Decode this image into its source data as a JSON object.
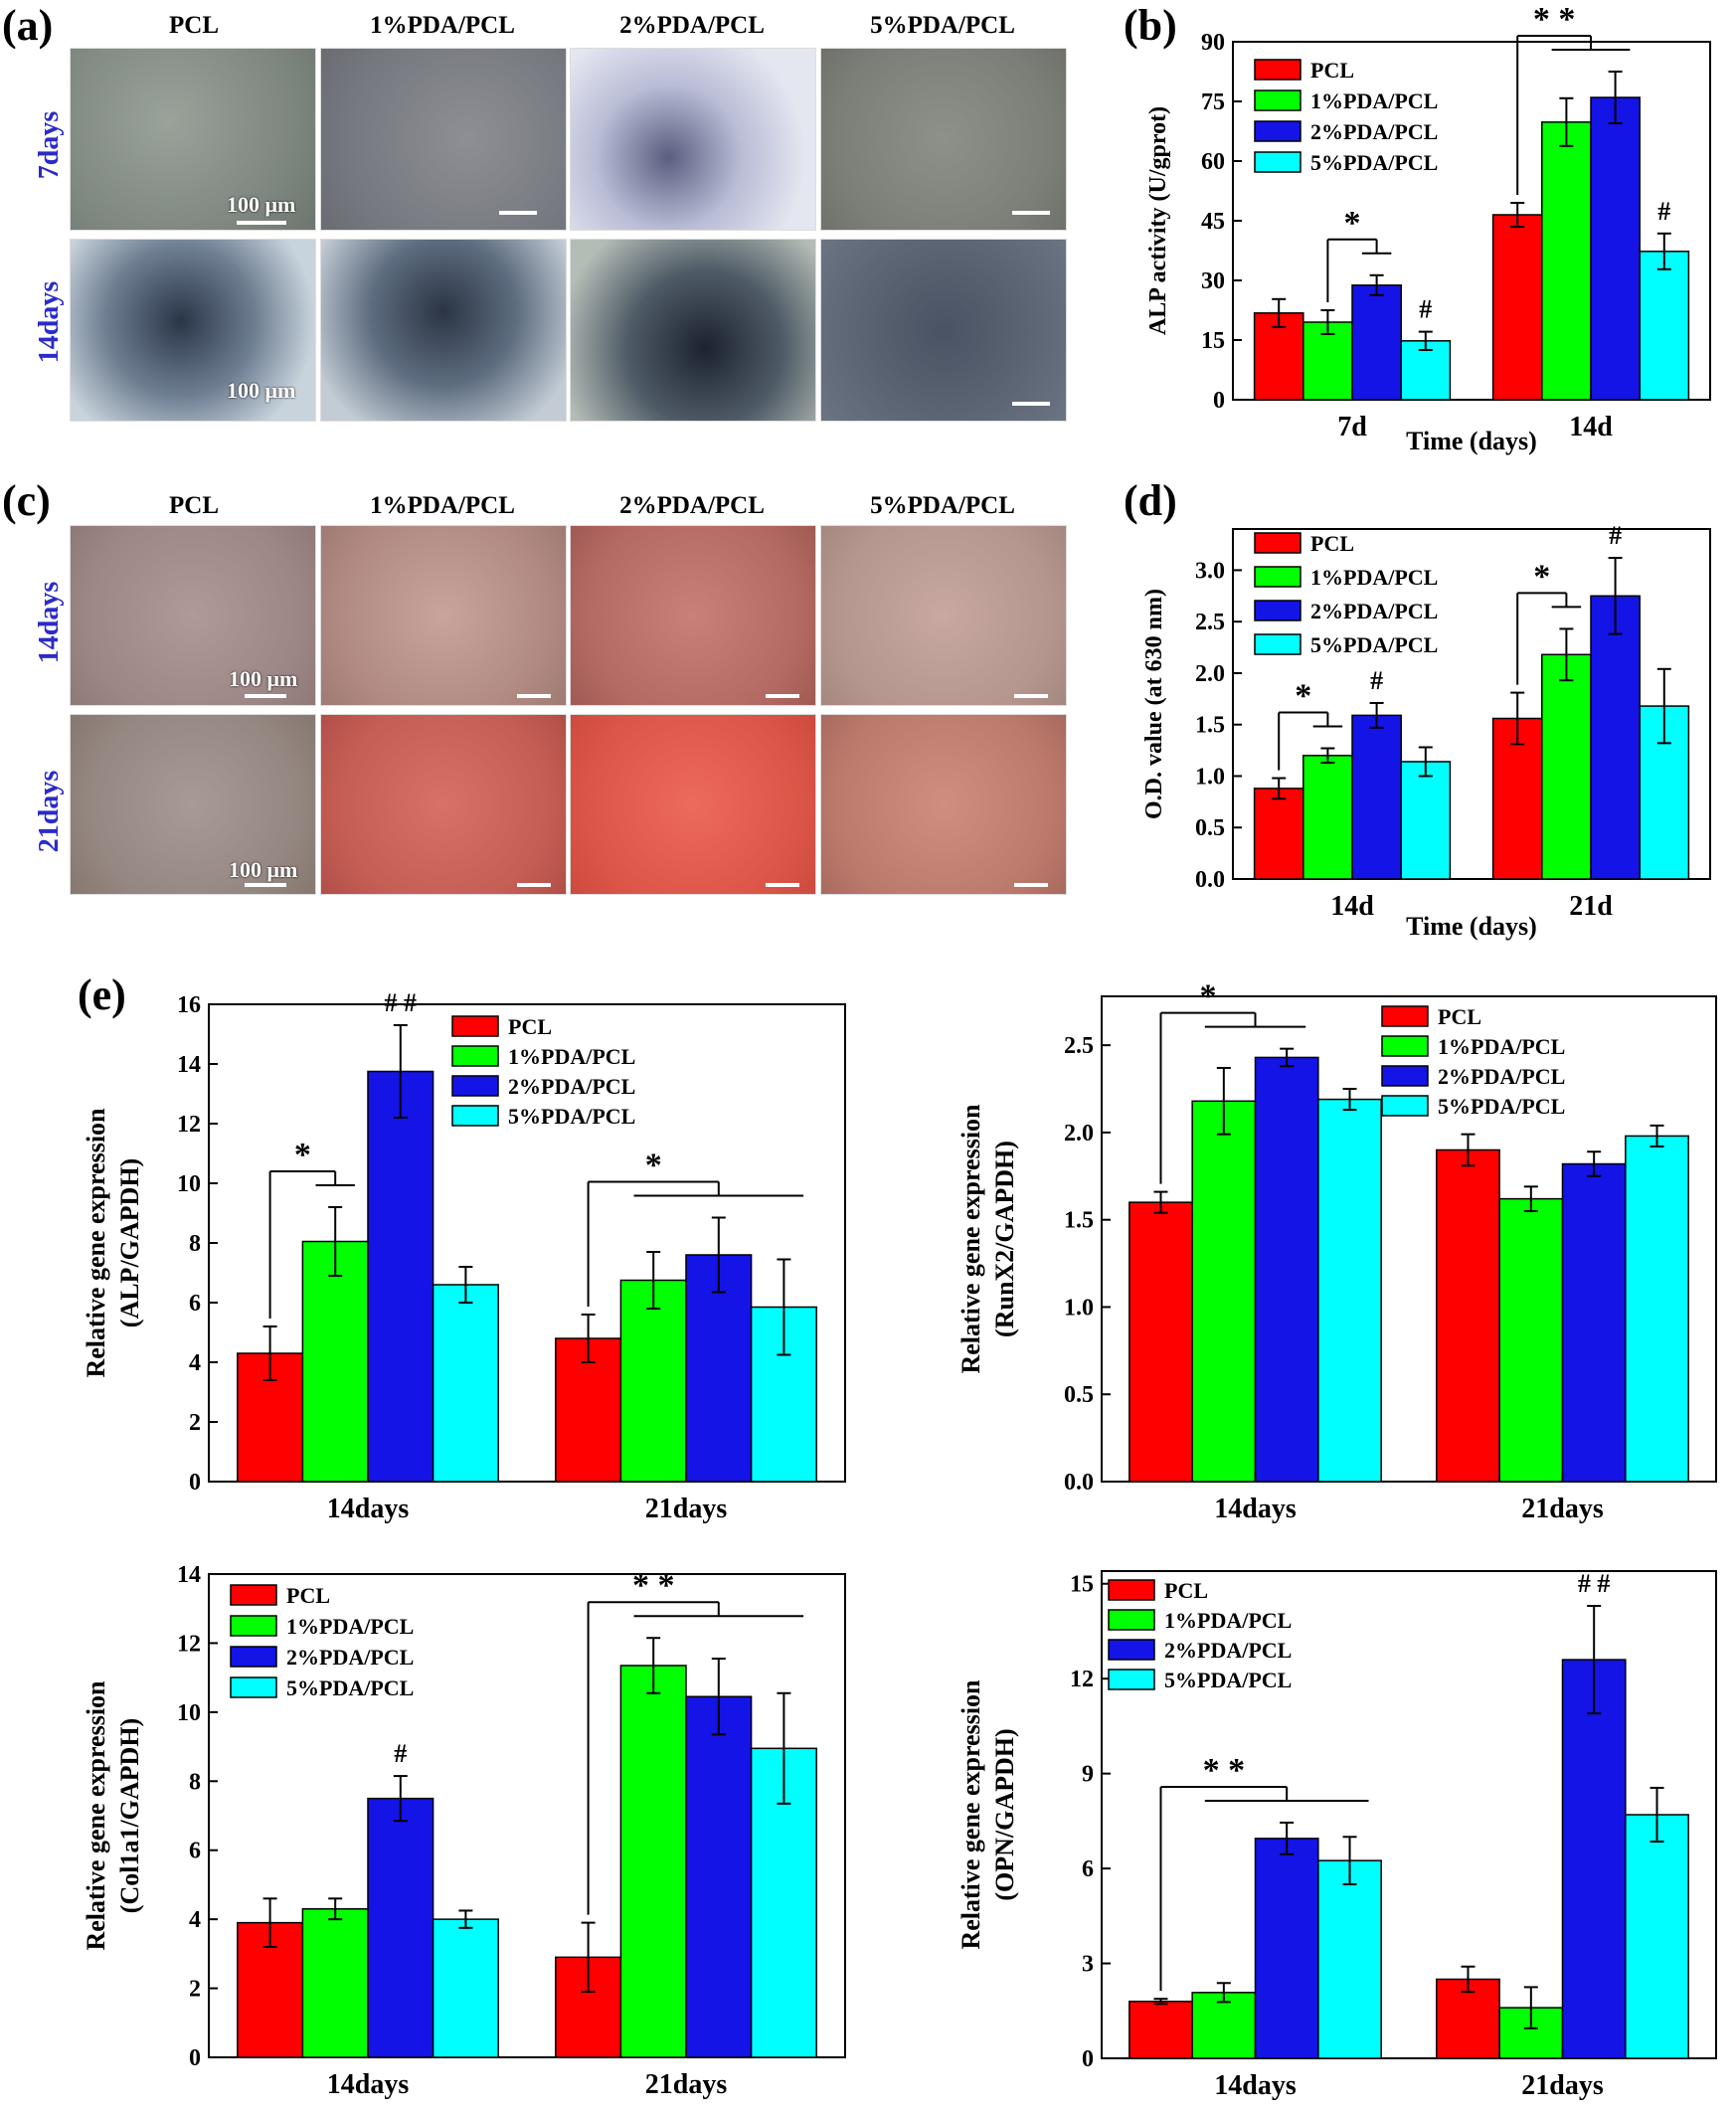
{
  "figure": {
    "panels": {
      "a": "(a)",
      "b": "(b)",
      "c": "(c)",
      "d": "(d)",
      "e": "(e)"
    },
    "image_columns": [
      "PCL",
      "1%PDA/PCL",
      "2%PDA/PCL",
      "5%PDA/PCL"
    ],
    "panel_a_rows": [
      "7days",
      "14days"
    ],
    "panel_c_rows": [
      "14days",
      "21days"
    ],
    "scale_label": "100 μm"
  },
  "colors": {
    "PCL": "#ff0000",
    "1%PDA/PCL": "#00ff00",
    "2%PDA/PCL": "#1414e6",
    "5%PDA/PCL": "#00ffff",
    "row_label": "#2b2bc8",
    "alp_stain": "#2a3040",
    "ars_stain": "#c46a5a"
  },
  "chart_data": [
    {
      "id": "b",
      "type": "bar",
      "categories": [
        "7d",
        "14d"
      ],
      "series": [
        {
          "name": "PCL",
          "values": [
            21.8,
            46.5
          ],
          "errors": [
            3.5,
            3.0
          ]
        },
        {
          "name": "1%PDA/PCL",
          "values": [
            19.5,
            69.8
          ],
          "errors": [
            3.0,
            6.0
          ]
        },
        {
          "name": "2%PDA/PCL",
          "values": [
            28.8,
            76.0
          ],
          "errors": [
            2.5,
            6.5
          ]
        },
        {
          "name": "5%PDA/PCL",
          "values": [
            14.8,
            37.3
          ],
          "errors": [
            2.3,
            4.5
          ]
        }
      ],
      "xlabel": "Time (days)",
      "ylabel": "ALP activity (U/gprot)",
      "ylim": [
        0,
        90
      ],
      "yticks": [
        0,
        15,
        30,
        45,
        60,
        75,
        90
      ],
      "tick_labels": [
        "0",
        "15",
        "30",
        "45",
        "60",
        "75",
        "90"
      ],
      "legend": "top-left",
      "annotations": [
        {
          "text": "*",
          "category": 0,
          "brackets": [
            [
              1,
              2
            ]
          ]
        },
        {
          "text": "#",
          "category": 0,
          "series": 3
        },
        {
          "text": "* *",
          "category": 1,
          "brackets": [
            [
              0,
              1,
              2
            ]
          ]
        },
        {
          "text": "#",
          "category": 1,
          "series": 3
        }
      ]
    },
    {
      "id": "d",
      "type": "bar",
      "categories": [
        "14d",
        "21d"
      ],
      "series": [
        {
          "name": "PCL",
          "values": [
            0.88,
            1.56
          ],
          "errors": [
            0.1,
            0.25
          ]
        },
        {
          "name": "1%PDA/PCL",
          "values": [
            1.2,
            2.18
          ],
          "errors": [
            0.07,
            0.25
          ]
        },
        {
          "name": "2%PDA/PCL",
          "values": [
            1.59,
            2.75
          ],
          "errors": [
            0.12,
            0.37
          ]
        },
        {
          "name": "5%PDA/PCL",
          "values": [
            1.14,
            1.68
          ],
          "errors": [
            0.14,
            0.36
          ]
        }
      ],
      "xlabel": "Time (days)",
      "ylabel": "O.D. value (at 630 nm)",
      "ylim": [
        0,
        3.4
      ],
      "yticks": [
        0,
        0.5,
        1,
        1.5,
        2,
        2.5,
        3
      ],
      "tick_labels": [
        "0.0",
        "0.5",
        "1.0",
        "1.5",
        "2.0",
        "2.5",
        "3.0"
      ],
      "legend": "top-left",
      "annotations": [
        {
          "text": "*",
          "category": 0,
          "brackets": [
            [
              0,
              1
            ]
          ]
        },
        {
          "text": "#",
          "category": 0,
          "series": 2
        },
        {
          "text": "*",
          "category": 1,
          "brackets": [
            [
              0,
              1
            ]
          ]
        },
        {
          "text": "#",
          "category": 1,
          "series": 2
        }
      ]
    },
    {
      "id": "e1",
      "type": "bar",
      "categories": [
        "14days",
        "21days"
      ],
      "series": [
        {
          "name": "PCL",
          "values": [
            4.3,
            4.8
          ],
          "errors": [
            0.9,
            0.8
          ]
        },
        {
          "name": "1%PDA/PCL",
          "values": [
            8.05,
            6.75
          ],
          "errors": [
            1.15,
            0.95
          ]
        },
        {
          "name": "2%PDA/PCL",
          "values": [
            13.75,
            7.6
          ],
          "errors": [
            1.55,
            1.25
          ]
        },
        {
          "name": "5%PDA/PCL",
          "values": [
            6.6,
            5.85
          ],
          "errors": [
            0.6,
            1.6
          ]
        }
      ],
      "xlabel": "",
      "ylabel": "Relative gene expression (ALP/GAPDH)",
      "ylim": [
        0,
        16
      ],
      "yticks": [
        0,
        2,
        4,
        6,
        8,
        10,
        12,
        14,
        16
      ],
      "tick_labels": [
        "0",
        "2",
        "4",
        "6",
        "8",
        "10",
        "12",
        "14",
        "16"
      ],
      "legend": "top-right",
      "annotations": [
        {
          "text": "*",
          "category": 0,
          "brackets": [
            [
              0,
              1
            ]
          ]
        },
        {
          "text": "# #",
          "category": 0,
          "series": 2
        },
        {
          "text": "*",
          "category": 1,
          "brackets": [
            [
              0,
              1,
              2,
              3
            ]
          ]
        }
      ]
    },
    {
      "id": "e2",
      "type": "bar",
      "categories": [
        "14days",
        "21days"
      ],
      "series": [
        {
          "name": "PCL",
          "values": [
            1.6,
            1.9
          ],
          "errors": [
            0.06,
            0.09
          ]
        },
        {
          "name": "1%PDA/PCL",
          "values": [
            2.18,
            1.62
          ],
          "errors": [
            0.19,
            0.07
          ]
        },
        {
          "name": "2%PDA/PCL",
          "values": [
            2.43,
            1.82
          ],
          "errors": [
            0.05,
            0.07
          ]
        },
        {
          "name": "5%PDA/PCL",
          "values": [
            2.19,
            1.98
          ],
          "errors": [
            0.06,
            0.06
          ]
        }
      ],
      "xlabel": "",
      "ylabel": "Relative gene expression (RunX2/GAPDH)",
      "ylim": [
        0,
        2.78
      ],
      "yticks": [
        0,
        0.5,
        1,
        1.5,
        2,
        2.5
      ],
      "tick_labels": [
        "0.0",
        "0.5",
        "1.0",
        "1.5",
        "2.0",
        "2.5"
      ],
      "legend": "top-right",
      "annotations": [
        {
          "text": "*",
          "category": 0,
          "brackets": [
            [
              0,
              1,
              2
            ]
          ]
        }
      ]
    },
    {
      "id": "e3",
      "type": "bar",
      "categories": [
        "14days",
        "21days"
      ],
      "series": [
        {
          "name": "PCL",
          "values": [
            3.9,
            2.9
          ],
          "errors": [
            0.7,
            1.0
          ]
        },
        {
          "name": "1%PDA/PCL",
          "values": [
            4.3,
            11.35
          ],
          "errors": [
            0.3,
            0.8
          ]
        },
        {
          "name": "2%PDA/PCL",
          "values": [
            7.5,
            10.45
          ],
          "errors": [
            0.65,
            1.1
          ]
        },
        {
          "name": "5%PDA/PCL",
          "values": [
            4.0,
            8.95
          ],
          "errors": [
            0.25,
            1.6
          ]
        }
      ],
      "xlabel": "",
      "ylabel": "Relative gene expression (Col1a1/GAPDH)",
      "ylim": [
        0,
        14
      ],
      "yticks": [
        0,
        2,
        4,
        6,
        8,
        10,
        12,
        14
      ],
      "tick_labels": [
        "0",
        "2",
        "4",
        "6",
        "8",
        "10",
        "12",
        "14"
      ],
      "legend": "top-left",
      "annotations": [
        {
          "text": "#",
          "category": 0,
          "series": 2
        },
        {
          "text": "* *",
          "category": 1,
          "brackets": [
            [
              0,
              1,
              2,
              3
            ]
          ]
        }
      ]
    },
    {
      "id": "e4",
      "type": "bar",
      "categories": [
        "14days",
        "21days"
      ],
      "series": [
        {
          "name": "PCL",
          "values": [
            1.8,
            2.5
          ],
          "errors": [
            0.08,
            0.4
          ]
        },
        {
          "name": "1%PDA/PCL",
          "values": [
            2.08,
            1.6
          ],
          "errors": [
            0.3,
            0.65
          ]
        },
        {
          "name": "2%PDA/PCL",
          "values": [
            6.95,
            12.6
          ],
          "errors": [
            0.5,
            1.7
          ]
        },
        {
          "name": "5%PDA/PCL",
          "values": [
            6.25,
            7.7
          ],
          "errors": [
            0.75,
            0.85
          ]
        }
      ],
      "xlabel": "",
      "ylabel": "Relative gene expression (OPN/GAPDH)",
      "ylim": [
        0,
        15.4
      ],
      "yticks": [
        0,
        3,
        6,
        9,
        12,
        15
      ],
      "tick_labels": [
        "0",
        "3",
        "6",
        "9",
        "12",
        "15"
      ],
      "legend": "top-left",
      "annotations": [
        {
          "text": "* *",
          "category": 0,
          "brackets": [
            [
              0,
              1,
              2,
              3
            ]
          ]
        },
        {
          "text": "# #",
          "category": 1,
          "series": 2
        }
      ]
    }
  ]
}
